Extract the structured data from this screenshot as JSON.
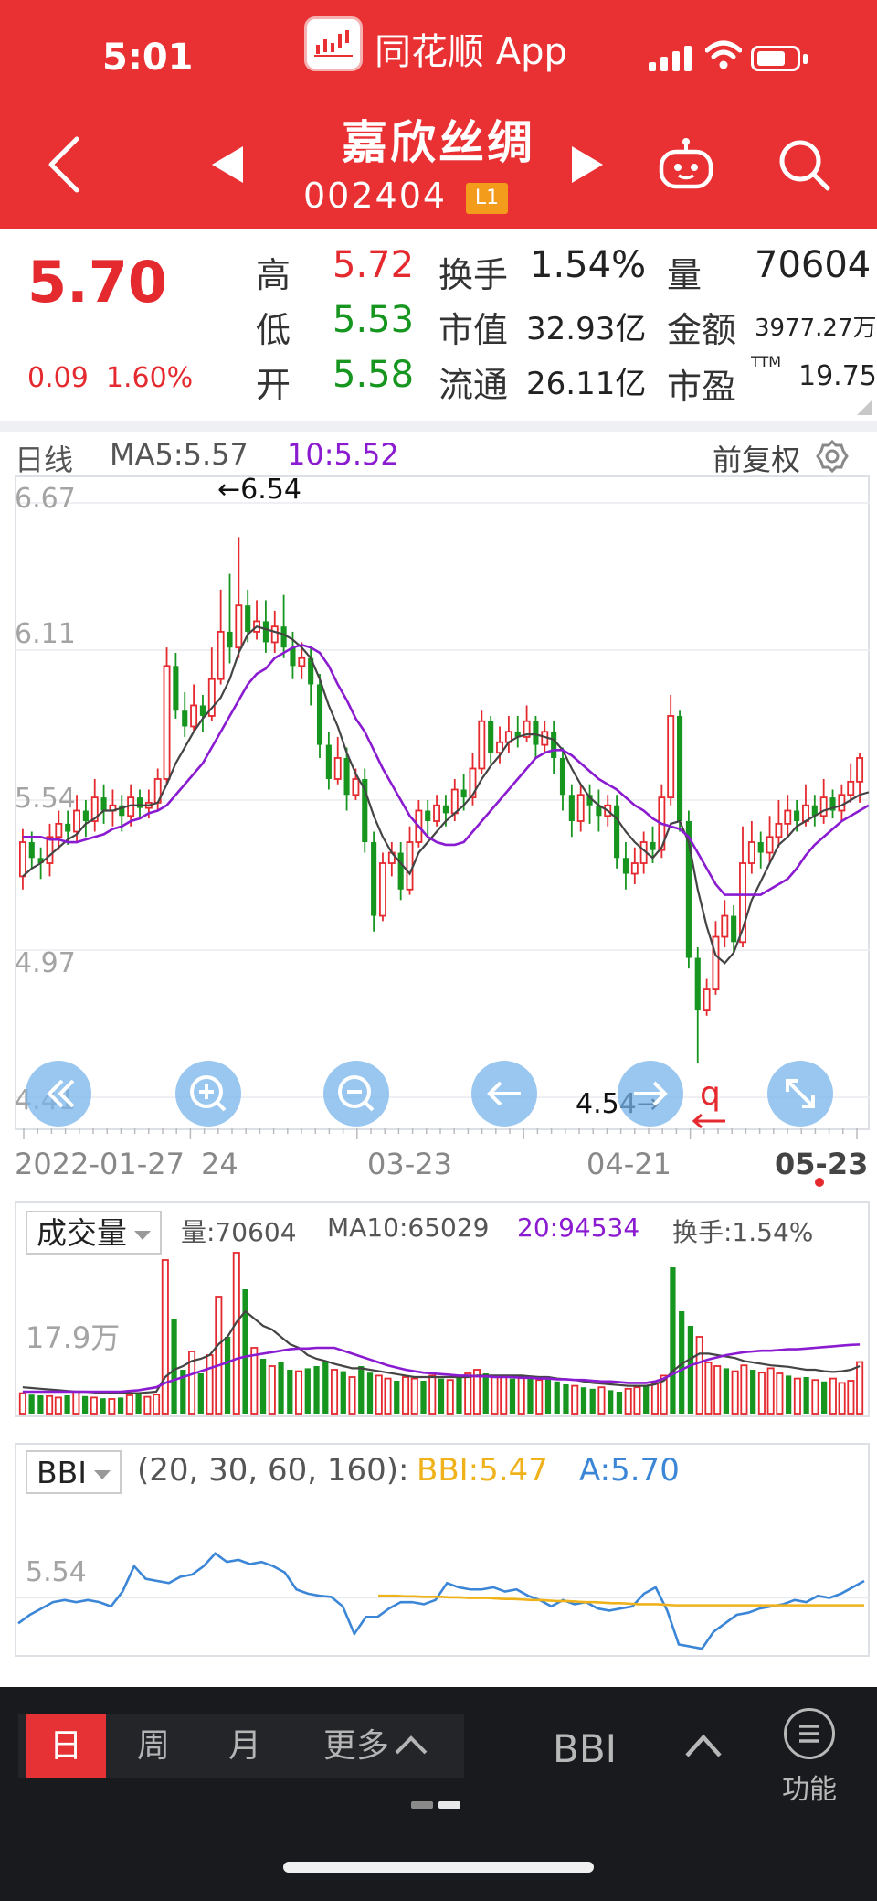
{
  "status_bar": {
    "time": "5:01",
    "app_name": "同花顺 App"
  },
  "header": {
    "stock_name": "嘉欣丝绸",
    "stock_code": "002404",
    "level_badge": "L1",
    "icons": [
      "back-icon",
      "prev-stock-icon",
      "next-stock-icon",
      "robot-icon",
      "search-icon"
    ]
  },
  "quote": {
    "price": "5.70",
    "change": "0.09",
    "change_pct": "1.60%",
    "high_label": "高",
    "high": "5.72",
    "low_label": "低",
    "low": "5.53",
    "open_label": "开",
    "open": "5.58",
    "turnover_label": "换手",
    "turnover": "1.54%",
    "mktcap_label": "市值",
    "mktcap": "32.93亿",
    "float_label": "流通",
    "float_cap": "26.11亿",
    "volume_label": "量",
    "volume": "70604",
    "amount_label": "金额",
    "amount": "3977.27万",
    "pe_label": "市盈",
    "pe_sup": "TTM",
    "pe": "19.75"
  },
  "kline": {
    "period_label": "日线",
    "ma5": "MA5:5.57",
    "ma10": "10:5.52",
    "adjust_label": "前复权",
    "y_ticks": [
      "6.67",
      "6.11",
      "5.54",
      "4.97",
      "4.41"
    ],
    "max_annotation": "←6.54",
    "min_annotation": "4.54→",
    "marker_q": "q",
    "x_labels": [
      "2022-01-27",
      "24",
      "03-23",
      "04-21",
      "05-23"
    ]
  },
  "volume_panel": {
    "selector_label": "成交量",
    "vol": "量:70604",
    "ma10": "MA10:65029",
    "ma20": "20:94534",
    "turnover": "换手:1.54%",
    "y_tick": "17.9万"
  },
  "bbi_panel": {
    "selector_label": "BBI",
    "params": "(20, 30, 60, 160):",
    "bbi": "BBI:5.47",
    "a": "A:5.70",
    "y_tick": "5.54"
  },
  "bottom_bar": {
    "periods": [
      "日",
      "周",
      "月",
      "更多"
    ],
    "indicator_label": "BBI",
    "function_label": "功能"
  },
  "colors": {
    "header_red": "#e93033",
    "up_red": "#e4292f",
    "down_green": "#16951f",
    "ma_purple": "#8a1bd0",
    "bbi_yellow": "#f0b21a",
    "a_blue": "#3b86d6"
  },
  "chart_data": [
    {
      "type": "candlestick",
      "title": "",
      "ylim": [
        4.41,
        6.67
      ],
      "y_ticks": [
        6.67,
        6.11,
        5.54,
        4.97,
        4.41
      ],
      "x_labels": [
        "2022-01-27",
        "24",
        "03-23",
        "04-21",
        "05-23"
      ],
      "high_marker": 6.54,
      "low_marker": 4.54,
      "ohlc": [
        [
          5.25,
          5.38,
          5.2,
          5.43
        ],
        [
          5.38,
          5.32,
          5.28,
          5.42
        ],
        [
          5.32,
          5.3,
          5.24,
          5.36
        ],
        [
          5.3,
          5.4,
          5.25,
          5.45
        ],
        [
          5.4,
          5.45,
          5.35,
          5.5
        ],
        [
          5.45,
          5.42,
          5.37,
          5.5
        ],
        [
          5.42,
          5.5,
          5.38,
          5.56
        ],
        [
          5.5,
          5.46,
          5.4,
          5.54
        ],
        [
          5.46,
          5.55,
          5.42,
          5.62
        ],
        [
          5.55,
          5.5,
          5.45,
          5.6
        ],
        [
          5.5,
          5.52,
          5.44,
          5.58
        ],
        [
          5.52,
          5.48,
          5.42,
          5.56
        ],
        [
          5.48,
          5.55,
          5.44,
          5.6
        ],
        [
          5.55,
          5.51,
          5.47,
          5.58
        ],
        [
          5.51,
          5.53,
          5.47,
          5.58
        ],
        [
          5.53,
          5.62,
          5.5,
          5.66
        ],
        [
          5.62,
          6.05,
          5.6,
          6.12
        ],
        [
          6.05,
          5.88,
          5.85,
          6.1
        ],
        [
          5.88,
          5.82,
          5.78,
          5.95
        ],
        [
          5.82,
          5.9,
          5.8,
          5.98
        ],
        [
          5.9,
          5.86,
          5.8,
          5.94
        ],
        [
          5.86,
          6.0,
          5.84,
          6.12
        ],
        [
          6.0,
          6.18,
          5.98,
          6.34
        ],
        [
          6.18,
          6.12,
          6.06,
          6.4
        ],
        [
          6.12,
          6.28,
          6.08,
          6.54
        ],
        [
          6.28,
          6.18,
          6.14,
          6.34
        ],
        [
          6.18,
          6.22,
          6.15,
          6.3
        ],
        [
          6.22,
          6.14,
          6.1,
          6.3
        ],
        [
          6.14,
          6.2,
          6.1,
          6.26
        ],
        [
          6.2,
          6.12,
          6.08,
          6.32
        ],
        [
          6.12,
          6.05,
          6.0,
          6.18
        ],
        [
          6.05,
          6.08,
          6.0,
          6.14
        ],
        [
          6.08,
          5.98,
          5.9,
          6.12
        ],
        [
          5.98,
          5.75,
          5.7,
          6.02
        ],
        [
          5.75,
          5.62,
          5.58,
          5.8
        ],
        [
          5.62,
          5.7,
          5.6,
          5.78
        ],
        [
          5.7,
          5.56,
          5.5,
          5.74
        ],
        [
          5.56,
          5.62,
          5.54,
          5.66
        ],
        [
          5.62,
          5.38,
          5.34,
          5.66
        ],
        [
          5.38,
          5.1,
          5.04,
          5.42
        ],
        [
          5.1,
          5.3,
          5.08,
          5.34
        ],
        [
          5.3,
          5.34,
          5.25,
          5.38
        ],
        [
          5.34,
          5.2,
          5.16,
          5.38
        ],
        [
          5.2,
          5.38,
          5.18,
          5.44
        ],
        [
          5.38,
          5.5,
          5.36,
          5.54
        ],
        [
          5.5,
          5.46,
          5.4,
          5.54
        ],
        [
          5.46,
          5.52,
          5.44,
          5.56
        ],
        [
          5.52,
          5.49,
          5.44,
          5.56
        ],
        [
          5.49,
          5.58,
          5.46,
          5.62
        ],
        [
          5.58,
          5.55,
          5.5,
          5.64
        ],
        [
          5.55,
          5.66,
          5.52,
          5.72
        ],
        [
          5.66,
          5.84,
          5.64,
          5.88
        ],
        [
          5.84,
          5.72,
          5.68,
          5.86
        ],
        [
          5.72,
          5.76,
          5.68,
          5.82
        ],
        [
          5.76,
          5.8,
          5.72,
          5.86
        ],
        [
          5.8,
          5.78,
          5.74,
          5.86
        ],
        [
          5.78,
          5.84,
          5.76,
          5.9
        ],
        [
          5.84,
          5.75,
          5.7,
          5.86
        ],
        [
          5.75,
          5.8,
          5.72,
          5.84
        ],
        [
          5.8,
          5.7,
          5.64,
          5.84
        ],
        [
          5.7,
          5.56,
          5.5,
          5.74
        ],
        [
          5.56,
          5.46,
          5.4,
          5.6
        ],
        [
          5.46,
          5.56,
          5.42,
          5.6
        ],
        [
          5.56,
          5.52,
          5.45,
          5.6
        ],
        [
          5.52,
          5.48,
          5.42,
          5.58
        ],
        [
          5.48,
          5.52,
          5.44,
          5.56
        ],
        [
          5.52,
          5.32,
          5.28,
          5.56
        ],
        [
          5.32,
          5.26,
          5.2,
          5.38
        ],
        [
          5.26,
          5.3,
          5.22,
          5.36
        ],
        [
          5.3,
          5.38,
          5.26,
          5.42
        ],
        [
          5.38,
          5.35,
          5.3,
          5.44
        ],
        [
          5.35,
          5.55,
          5.32,
          5.6
        ],
        [
          5.55,
          5.86,
          5.52,
          5.94
        ],
        [
          5.86,
          5.46,
          5.42,
          5.88
        ],
        [
          5.46,
          4.94,
          4.9,
          5.5
        ],
        [
          4.94,
          4.74,
          4.54,
          4.98
        ],
        [
          4.74,
          4.82,
          4.72,
          4.86
        ],
        [
          4.82,
          5.02,
          4.8,
          5.08
        ],
        [
          5.02,
          5.1,
          4.98,
          5.16
        ],
        [
          5.1,
          5.0,
          4.96,
          5.14
        ],
        [
          5.0,
          5.3,
          4.98,
          5.44
        ],
        [
          5.3,
          5.38,
          5.26,
          5.46
        ],
        [
          5.38,
          5.34,
          5.28,
          5.42
        ],
        [
          5.34,
          5.4,
          5.3,
          5.48
        ],
        [
          5.4,
          5.45,
          5.36,
          5.54
        ],
        [
          5.45,
          5.5,
          5.4,
          5.56
        ],
        [
          5.5,
          5.46,
          5.42,
          5.54
        ],
        [
          5.46,
          5.52,
          5.44,
          5.6
        ],
        [
          5.52,
          5.48,
          5.44,
          5.56
        ],
        [
          5.48,
          5.55,
          5.45,
          5.62
        ],
        [
          5.55,
          5.5,
          5.47,
          5.58
        ],
        [
          5.5,
          5.56,
          5.46,
          5.6
        ],
        [
          5.56,
          5.61,
          5.53,
          5.68
        ],
        [
          5.61,
          5.7,
          5.53,
          5.72
        ]
      ],
      "ma5": [
        5.25,
        5.28,
        5.3,
        5.33,
        5.36,
        5.39,
        5.41,
        5.45,
        5.47,
        5.5,
        5.5,
        5.51,
        5.52,
        5.52,
        5.52,
        5.53,
        5.6,
        5.68,
        5.74,
        5.8,
        5.85,
        5.89,
        5.93,
        6.0,
        6.1,
        6.17,
        6.2,
        6.19,
        6.18,
        6.17,
        6.15,
        6.12,
        6.08,
        6.0,
        5.9,
        5.82,
        5.72,
        5.64,
        5.58,
        5.48,
        5.4,
        5.34,
        5.3,
        5.26,
        5.34,
        5.38,
        5.42,
        5.46,
        5.49,
        5.52,
        5.56,
        5.62,
        5.67,
        5.71,
        5.76,
        5.78,
        5.79,
        5.79,
        5.78,
        5.77,
        5.73,
        5.66,
        5.6,
        5.55,
        5.52,
        5.5,
        5.47,
        5.42,
        5.38,
        5.35,
        5.32,
        5.36,
        5.45,
        5.46,
        5.38,
        5.2,
        5.06,
        4.95,
        4.92,
        4.96,
        5.05,
        5.16,
        5.23,
        5.3,
        5.37,
        5.4,
        5.44,
        5.46,
        5.48,
        5.5,
        5.51,
        5.52,
        5.54,
        5.56,
        5.57
      ],
      "ma10": [
        5.4,
        5.4,
        5.4,
        5.39,
        5.39,
        5.38,
        5.38,
        5.39,
        5.4,
        5.41,
        5.43,
        5.44,
        5.46,
        5.47,
        5.49,
        5.5,
        5.52,
        5.56,
        5.6,
        5.64,
        5.68,
        5.74,
        5.8,
        5.86,
        5.92,
        5.98,
        6.02,
        6.04,
        6.08,
        6.1,
        6.12,
        6.13,
        6.12,
        6.1,
        6.05,
        5.98,
        5.92,
        5.85,
        5.8,
        5.73,
        5.66,
        5.6,
        5.54,
        5.48,
        5.44,
        5.4,
        5.38,
        5.37,
        5.37,
        5.38,
        5.42,
        5.46,
        5.5,
        5.54,
        5.58,
        5.62,
        5.66,
        5.7,
        5.72,
        5.73,
        5.73,
        5.71,
        5.68,
        5.65,
        5.62,
        5.6,
        5.58,
        5.55,
        5.52,
        5.5,
        5.47,
        5.45,
        5.44,
        5.43,
        5.4,
        5.34,
        5.28,
        5.22,
        5.18,
        5.18,
        5.18,
        5.18,
        5.18,
        5.2,
        5.22,
        5.24,
        5.28,
        5.33,
        5.37,
        5.4,
        5.43,
        5.46,
        5.48,
        5.5,
        5.52
      ]
    },
    {
      "type": "bar",
      "title": "",
      "y_tick": "17.9万",
      "ylim": [
        0,
        260000
      ],
      "volumes": [
        28000,
        26000,
        25000,
        24000,
        22000,
        25000,
        30000,
        24000,
        22000,
        21000,
        20000,
        22000,
        25000,
        27000,
        23000,
        26000,
        210000,
        130000,
        60000,
        85000,
        55000,
        80000,
        160000,
        105000,
        220000,
        170000,
        90000,
        75000,
        65000,
        70000,
        60000,
        58000,
        62000,
        65000,
        70000,
        60000,
        58000,
        50000,
        65000,
        56000,
        52000,
        48000,
        45000,
        50000,
        48000,
        45000,
        52000,
        48000,
        46000,
        50000,
        55000,
        60000,
        55000,
        52000,
        50000,
        48000,
        52000,
        50000,
        46000,
        48000,
        44000,
        40000,
        38000,
        36000,
        34000,
        36000,
        32000,
        30000,
        34000,
        36000,
        38000,
        42000,
        52000,
        200000,
        140000,
        120000,
        105000,
        70000,
        65000,
        62000,
        58000,
        66000,
        60000,
        56000,
        62000,
        55000,
        52000,
        48000,
        50000,
        46000,
        44000,
        48000,
        42000,
        45000,
        70604
      ],
      "ma10_line": [
        36000,
        35000,
        34000,
        33000,
        32000,
        31000,
        30000,
        30000,
        29000,
        28000,
        28000,
        28000,
        28000,
        28000,
        29000,
        30000,
        50000,
        60000,
        65000,
        72000,
        75000,
        80000,
        95000,
        105000,
        125000,
        140000,
        130000,
        120000,
        115000,
        105000,
        95000,
        90000,
        80000,
        75000,
        72000,
        68000,
        65000,
        62000,
        62000,
        60000,
        58000,
        56000,
        54000,
        52000,
        50000,
        50000,
        50000,
        50000,
        50000,
        50000,
        50000,
        52000,
        52000,
        52000,
        52000,
        52000,
        52000,
        51000,
        50000,
        50000,
        48000,
        47000,
        46000,
        44000,
        42000,
        41000,
        40000,
        39000,
        38000,
        38000,
        38000,
        40000,
        45000,
        58000,
        68000,
        75000,
        82000,
        82000,
        80000,
        78000,
        76000,
        72000,
        70000,
        68000,
        66000,
        65000,
        64000,
        62000,
        60000,
        60000,
        58000,
        57000,
        58000,
        60000,
        65029
      ],
      "ma20_line": [
        30000,
        30000,
        30000,
        30000,
        30000,
        30000,
        30000,
        30000,
        30000,
        30000,
        30000,
        30000,
        31000,
        32000,
        34000,
        36000,
        42000,
        46000,
        50000,
        54000,
        58000,
        62000,
        66000,
        70000,
        75000,
        78000,
        80000,
        82000,
        84000,
        86000,
        88000,
        89000,
        89000,
        90000,
        90000,
        90000,
        86000,
        82000,
        78000,
        74000,
        70000,
        66000,
        63000,
        60000,
        58000,
        56000,
        55000,
        54000,
        53000,
        52000,
        52000,
        51000,
        51000,
        50000,
        50000,
        50000,
        49000,
        49000,
        48000,
        48000,
        47000,
        47000,
        46000,
        46000,
        45000,
        44000,
        44000,
        43000,
        42000,
        42000,
        42000,
        44000,
        48000,
        54000,
        60000,
        66000,
        70000,
        74000,
        77000,
        80000,
        82000,
        84000,
        85000,
        86000,
        86000,
        87000,
        88000,
        88000,
        89000,
        90000,
        91000,
        92000,
        93000,
        94000,
        94534
      ]
    },
    {
      "type": "line",
      "title": "",
      "y_tick": 5.54,
      "ylim": [
        5.0,
        6.4
      ],
      "series": [
        {
          "name": "BBI:5.47",
          "x_start_index": 40,
          "values": [
            5.56,
            5.56,
            5.56,
            5.555,
            5.555,
            5.55,
            5.55,
            5.55,
            5.545,
            5.545,
            5.54,
            5.54,
            5.54,
            5.535,
            5.53,
            5.53,
            5.525,
            5.52,
            5.52,
            5.515,
            5.51,
            5.51,
            5.505,
            5.5,
            5.5,
            5.495,
            5.49,
            5.49,
            5.485,
            5.48,
            5.48,
            5.48,
            5.475,
            5.47,
            5.47,
            5.47,
            5.47,
            5.47,
            5.47,
            5.47,
            5.47,
            5.47,
            5.47,
            5.47,
            5.47,
            5.47,
            5.47,
            5.47,
            5.47,
            5.47,
            5.47,
            5.47,
            5.47,
            5.47,
            5.47
          ]
        },
        {
          "name": "A:5.70",
          "values": [
            5.3,
            5.38,
            5.44,
            5.5,
            5.52,
            5.5,
            5.52,
            5.5,
            5.46,
            5.6,
            5.84,
            5.72,
            5.7,
            5.68,
            5.74,
            5.76,
            5.84,
            5.96,
            5.88,
            5.9,
            5.86,
            5.88,
            5.84,
            5.78,
            5.62,
            5.58,
            5.56,
            5.55,
            5.46,
            5.2,
            5.36,
            5.36,
            5.44,
            5.5,
            5.5,
            5.48,
            5.52,
            5.68,
            5.64,
            5.62,
            5.62,
            5.64,
            5.6,
            5.62,
            5.56,
            5.52,
            5.46,
            5.52,
            5.48,
            5.5,
            5.44,
            5.42,
            5.44,
            5.46,
            5.58,
            5.64,
            5.42,
            5.1,
            5.08,
            5.06,
            5.22,
            5.3,
            5.38,
            5.4,
            5.44,
            5.46,
            5.48,
            5.52,
            5.5,
            5.56,
            5.54,
            5.58,
            5.64,
            5.7
          ]
        }
      ]
    }
  ]
}
